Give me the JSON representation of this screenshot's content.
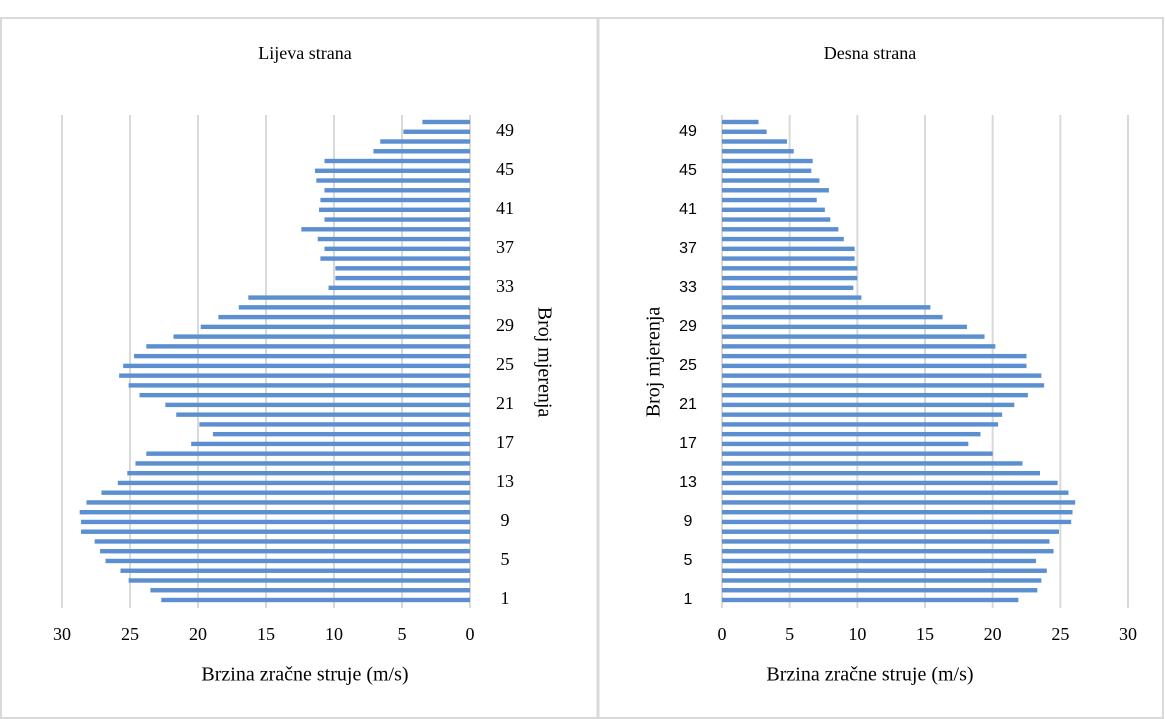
{
  "chart_data": [
    {
      "type": "bar",
      "orientation": "horizontal",
      "title": "Lijeva strana",
      "x_label": "Brzina zračne struje (m/s)",
      "y_label": "Broj mjerenja",
      "categories": [
        "1",
        null,
        null,
        null,
        "5",
        null,
        null,
        null,
        "9",
        null,
        null,
        null,
        "13",
        null,
        null,
        null,
        "17",
        null,
        null,
        null,
        "21",
        null,
        null,
        null,
        "25",
        null,
        null,
        null,
        "29",
        null,
        null,
        null,
        "33",
        null,
        null,
        null,
        "37",
        null,
        null,
        null,
        "41",
        null,
        null,
        null,
        "45",
        null,
        null,
        null,
        "49",
        null
      ],
      "values": [
        22.7,
        23.5,
        25.1,
        25.7,
        26.8,
        27.2,
        27.6,
        28.6,
        28.6,
        28.7,
        28.2,
        27.1,
        25.9,
        25.2,
        24.6,
        23.8,
        20.5,
        18.9,
        19.9,
        21.6,
        22.4,
        24.3,
        25.1,
        25.8,
        25.5,
        24.7,
        23.8,
        21.8,
        19.8,
        18.5,
        17.0,
        16.3,
        10.4,
        9.9,
        9.9,
        11.0,
        10.7,
        11.2,
        12.4,
        10.7,
        11.1,
        11.0,
        10.7,
        11.3,
        11.4,
        10.7,
        7.1,
        6.6,
        4.9,
        3.5
      ],
      "color": "#5b8fd0",
      "xlim": [
        0,
        30
      ],
      "xticks": [
        0,
        5,
        10,
        15,
        20,
        25,
        30
      ],
      "x_reversed": true,
      "y_axis_side": "right",
      "grid": true
    },
    {
      "type": "bar",
      "orientation": "horizontal",
      "title": "Desna strana",
      "x_label": "Brzina zračne struje (m/s)",
      "y_label": "Broj mjerenja",
      "categories": [
        "1",
        null,
        null,
        null,
        "5",
        null,
        null,
        null,
        "9",
        null,
        null,
        null,
        "13",
        null,
        null,
        null,
        "17",
        null,
        null,
        null,
        "21",
        null,
        null,
        null,
        "25",
        null,
        null,
        null,
        "29",
        null,
        null,
        null,
        "33",
        null,
        null,
        null,
        "37",
        null,
        null,
        null,
        "41",
        null,
        null,
        null,
        "45",
        null,
        null,
        null,
        "49",
        null
      ],
      "values": [
        21.9,
        23.3,
        23.6,
        24.0,
        23.2,
        24.5,
        24.2,
        24.9,
        25.8,
        25.9,
        26.1,
        25.6,
        24.8,
        23.5,
        22.2,
        20.0,
        18.2,
        19.1,
        20.4,
        20.7,
        21.6,
        22.6,
        23.8,
        23.6,
        22.5,
        22.5,
        20.2,
        19.4,
        18.1,
        16.3,
        15.4,
        10.3,
        9.7,
        10.0,
        10.0,
        9.8,
        9.8,
        9.0,
        8.6,
        8.0,
        7.6,
        7.0,
        7.9,
        7.2,
        6.6,
        6.7,
        5.3,
        4.8,
        3.3,
        2.7
      ],
      "color": "#5b8fd0",
      "xlim": [
        0,
        30
      ],
      "xticks": [
        0,
        5,
        10,
        15,
        20,
        25,
        30
      ],
      "x_reversed": false,
      "y_axis_side": "left",
      "grid": true
    }
  ]
}
